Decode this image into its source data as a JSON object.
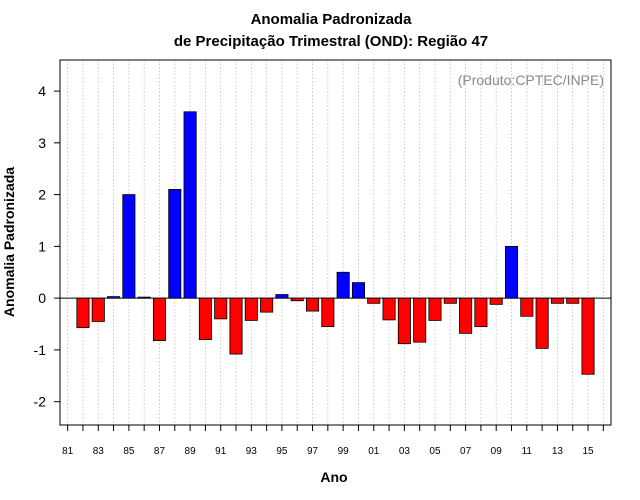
{
  "chart_data": {
    "type": "bar",
    "title": "Anomalia Padronizada",
    "subtitle": "de Precipitação Trimestral (OND): Região 47",
    "xlabel": "Ano",
    "ylabel": "Anomalia Padronizada",
    "credit": "(Produto:CPTEC/INPE)",
    "ylim": [
      -2.45,
      4.6
    ],
    "yticks": [
      -2,
      -1,
      0,
      1,
      2,
      3,
      4
    ],
    "xlim": [
      1980.5,
      2016.5
    ],
    "xticks": [
      1981,
      1983,
      1985,
      1987,
      1989,
      1991,
      1993,
      1995,
      1997,
      1999,
      2001,
      2003,
      2005,
      2007,
      2009,
      2011,
      2013,
      2015
    ],
    "xtick_labels": [
      "81",
      "83",
      "85",
      "87",
      "89",
      "91",
      "93",
      "95",
      "97",
      "99",
      "01",
      "03",
      "05",
      "07",
      "09",
      "11",
      "13",
      "15"
    ],
    "grid": "vertical dotted",
    "positive_color": "#0000ff",
    "negative_color": "#ff0000",
    "years": [
      1982,
      1983,
      1984,
      1985,
      1986,
      1987,
      1988,
      1989,
      1990,
      1991,
      1992,
      1993,
      1994,
      1995,
      1996,
      1997,
      1998,
      1999,
      2000,
      2001,
      2002,
      2003,
      2004,
      2005,
      2006,
      2007,
      2008,
      2009,
      2010,
      2011,
      2012,
      2013,
      2014,
      2015
    ],
    "values": [
      -0.57,
      -0.45,
      0.03,
      2.0,
      0.02,
      -0.82,
      2.1,
      3.6,
      -0.8,
      -0.4,
      -1.08,
      -0.43,
      -0.27,
      0.07,
      -0.05,
      -0.25,
      -0.55,
      0.5,
      0.3,
      -0.1,
      -0.42,
      -0.88,
      -0.85,
      -0.43,
      -0.1,
      -0.68,
      -0.55,
      -0.12,
      1.0,
      -0.35,
      -0.97,
      -0.1,
      -0.1,
      -1.47
    ]
  }
}
